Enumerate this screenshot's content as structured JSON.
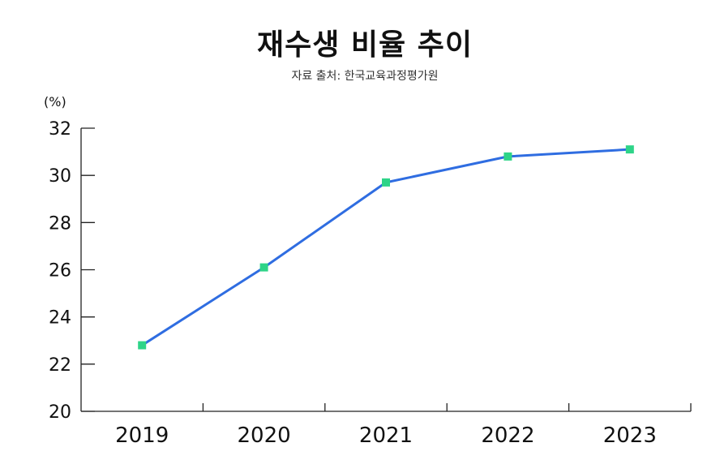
{
  "title": "재수생 비율 추이",
  "subtitle": "자료 출처: 한국교육과정평가원",
  "colors": {
    "line": "#2f6de1",
    "marker": "#2ed488",
    "axis": "#222222",
    "background": "#ffffff"
  },
  "chart_data": {
    "type": "line",
    "title": "재수생 비율 추이",
    "subtitle": "자료 출처: 한국교육과정평가원",
    "xlabel": "",
    "ylabel": "(%)",
    "categories": [
      "2019",
      "2020",
      "2021",
      "2022",
      "2023"
    ],
    "series": [
      {
        "values": [
          22.8,
          26.1,
          29.7,
          30.8,
          31.1
        ]
      }
    ],
    "ylim": [
      20,
      32
    ],
    "yticks": [
      "20",
      "22",
      "24",
      "26",
      "28",
      "30",
      "32"
    ],
    "grid": false,
    "legend": "none"
  }
}
